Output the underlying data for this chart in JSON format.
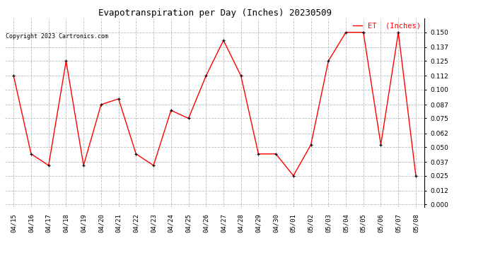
{
  "title": "Evapotranspiration per Day (Inches) 20230509",
  "copyright": "Copyright 2023 Cartronics.com",
  "legend_label": "ET  (Inches)",
  "dates": [
    "04/15",
    "04/16",
    "04/17",
    "04/18",
    "04/19",
    "04/20",
    "04/21",
    "04/22",
    "04/23",
    "04/24",
    "04/25",
    "04/26",
    "04/27",
    "04/28",
    "04/29",
    "04/30",
    "05/01",
    "05/02",
    "05/03",
    "05/04",
    "05/05",
    "05/06",
    "05/07",
    "05/08"
  ],
  "values": [
    0.112,
    0.044,
    0.034,
    0.125,
    0.034,
    0.087,
    0.092,
    0.044,
    0.034,
    0.082,
    0.075,
    0.112,
    0.143,
    0.112,
    0.044,
    0.044,
    0.025,
    0.052,
    0.125,
    0.15,
    0.15,
    0.052,
    0.15,
    0.025
  ],
  "ylim": [
    -0.002,
    0.162
  ],
  "yticks": [
    0.0,
    0.012,
    0.025,
    0.037,
    0.05,
    0.062,
    0.075,
    0.087,
    0.1,
    0.112,
    0.125,
    0.137,
    0.15
  ],
  "line_color": "red",
  "marker_color": "black",
  "grid_color": "#bbbbbb",
  "bg_color": "white",
  "title_fontsize": 9,
  "copyright_fontsize": 6,
  "legend_fontsize": 7.5,
  "tick_fontsize": 6.5
}
